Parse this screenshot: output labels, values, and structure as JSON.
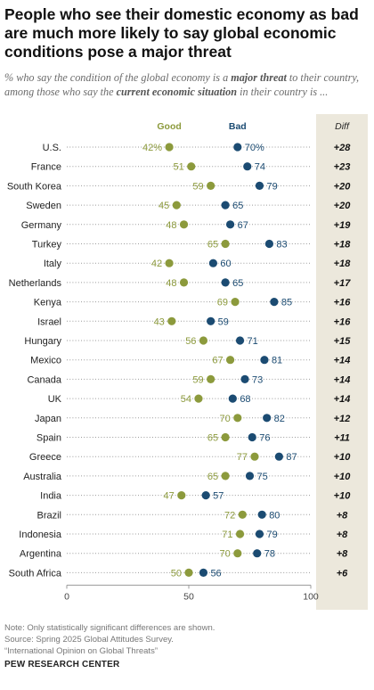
{
  "title": "People who see their domestic economy as bad are much more likely to say global economic conditions pose a major threat",
  "subtitle": {
    "p1": "% who say the condition of the global economy is a ",
    "b1": "major threat",
    "p2": " to their country, among those who say the ",
    "b2": "current economic situation",
    "p3": " in their country is ..."
  },
  "colors": {
    "good": "#8c9a3c",
    "bad": "#1b4b72",
    "diff_bg": "#ece8dc"
  },
  "chart_data": {
    "type": "dot-plot",
    "legend": {
      "good": "Good",
      "bad": "Bad",
      "diff": "Diff"
    },
    "xlim": [
      0,
      100
    ],
    "x_ticks": [
      0,
      50,
      100
    ],
    "rows": [
      {
        "country": "U.S.",
        "good": 42,
        "bad": 70,
        "diff": "+28",
        "good_label": "42%",
        "bad_label": "70%"
      },
      {
        "country": "France",
        "good": 51,
        "bad": 74,
        "diff": "+23",
        "good_label": "51",
        "bad_label": "74"
      },
      {
        "country": "South Korea",
        "good": 59,
        "bad": 79,
        "diff": "+20",
        "good_label": "59",
        "bad_label": "79"
      },
      {
        "country": "Sweden",
        "good": 45,
        "bad": 65,
        "diff": "+20",
        "good_label": "45",
        "bad_label": "65"
      },
      {
        "country": "Germany",
        "good": 48,
        "bad": 67,
        "diff": "+19",
        "good_label": "48",
        "bad_label": "67"
      },
      {
        "country": "Turkey",
        "good": 65,
        "bad": 83,
        "diff": "+18",
        "good_label": "65",
        "bad_label": "83"
      },
      {
        "country": "Italy",
        "good": 42,
        "bad": 60,
        "diff": "+18",
        "good_label": "42",
        "bad_label": "60"
      },
      {
        "country": "Netherlands",
        "good": 48,
        "bad": 65,
        "diff": "+17",
        "good_label": "48",
        "bad_label": "65"
      },
      {
        "country": "Kenya",
        "good": 69,
        "bad": 85,
        "diff": "+16",
        "good_label": "69",
        "bad_label": "85"
      },
      {
        "country": "Israel",
        "good": 43,
        "bad": 59,
        "diff": "+16",
        "good_label": "43",
        "bad_label": "59"
      },
      {
        "country": "Hungary",
        "good": 56,
        "bad": 71,
        "diff": "+15",
        "good_label": "56",
        "bad_label": "71"
      },
      {
        "country": "Mexico",
        "good": 67,
        "bad": 81,
        "diff": "+14",
        "good_label": "67",
        "bad_label": "81"
      },
      {
        "country": "Canada",
        "good": 59,
        "bad": 73,
        "diff": "+14",
        "good_label": "59",
        "bad_label": "73"
      },
      {
        "country": "UK",
        "good": 54,
        "bad": 68,
        "diff": "+14",
        "good_label": "54",
        "bad_label": "68"
      },
      {
        "country": "Japan",
        "good": 70,
        "bad": 82,
        "diff": "+12",
        "good_label": "70",
        "bad_label": "82"
      },
      {
        "country": "Spain",
        "good": 65,
        "bad": 76,
        "diff": "+11",
        "good_label": "65",
        "bad_label": "76"
      },
      {
        "country": "Greece",
        "good": 77,
        "bad": 87,
        "diff": "+10",
        "good_label": "77",
        "bad_label": "87"
      },
      {
        "country": "Australia",
        "good": 65,
        "bad": 75,
        "diff": "+10",
        "good_label": "65",
        "bad_label": "75"
      },
      {
        "country": "India",
        "good": 47,
        "bad": 57,
        "diff": "+10",
        "good_label": "47",
        "bad_label": "57"
      },
      {
        "country": "Brazil",
        "good": 72,
        "bad": 80,
        "diff": "+8",
        "good_label": "72",
        "bad_label": "80"
      },
      {
        "country": "Indonesia",
        "good": 71,
        "bad": 79,
        "diff": "+8",
        "good_label": "71",
        "bad_label": "79"
      },
      {
        "country": "Argentina",
        "good": 70,
        "bad": 78,
        "diff": "+8",
        "good_label": "70",
        "bad_label": "78"
      },
      {
        "country": "South Africa",
        "good": 50,
        "bad": 56,
        "diff": "+6",
        "good_label": "50",
        "bad_label": "56"
      }
    ]
  },
  "notes": [
    "Note: Only statistically significant differences are shown.",
    "Source: Spring 2025 Global Attitudes Survey.",
    "“International Opinion on Global Threats”"
  ],
  "footer": "PEW RESEARCH CENTER"
}
